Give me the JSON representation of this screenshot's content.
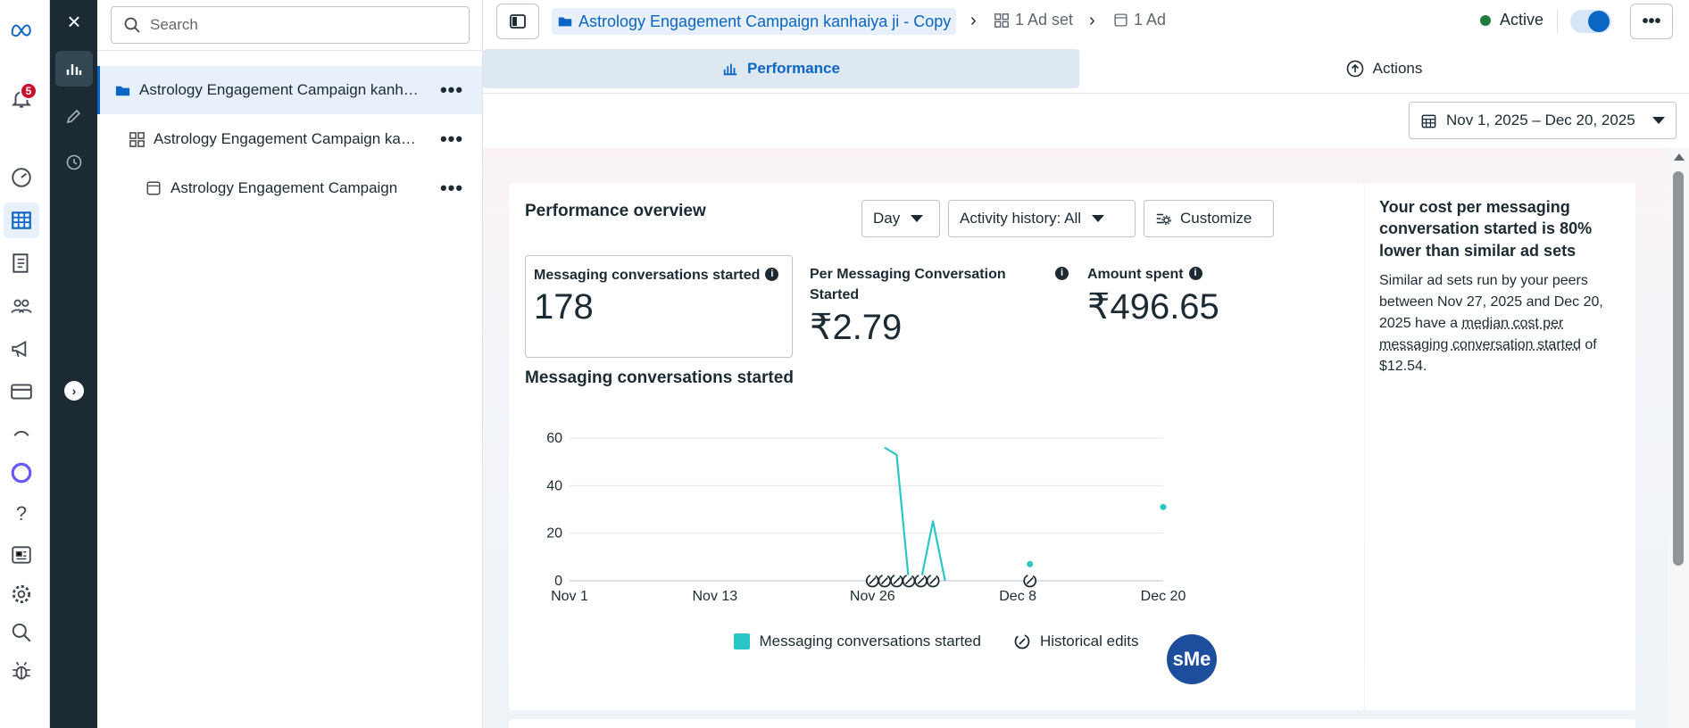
{
  "colors": {
    "accent": "#0a66c2",
    "series": "#2ac6c7",
    "active_status": "#1e7c43",
    "badge": "#c8102e",
    "toolbar_dark": "#1c2b33"
  },
  "rail": {
    "items": [
      {
        "icon": "meta-logo-icon"
      },
      {
        "icon": "bell-icon",
        "badge": "5"
      },
      {
        "icon": "dashboard-gauge-icon"
      },
      {
        "icon": "ads-manager-table-icon",
        "active": true
      },
      {
        "icon": "pages-icon"
      },
      {
        "icon": "audiences-icon"
      },
      {
        "icon": "megaphone-icon"
      },
      {
        "icon": "billing-card-icon"
      },
      {
        "icon": "loading-arc-icon"
      },
      {
        "icon": "meta-ai-ring-icon"
      },
      {
        "icon": "help-icon"
      },
      {
        "icon": "news-icon"
      },
      {
        "icon": "settings-gear-icon"
      },
      {
        "icon": "search-icon"
      },
      {
        "icon": "bug-report-icon"
      }
    ]
  },
  "tools": {
    "close": "×",
    "expand": "›"
  },
  "tree": {
    "search_placeholder": "Search",
    "rows": [
      {
        "label": "Astrology Engagement Campaign kanhaiya ji - Copy",
        "level": "campaign"
      },
      {
        "label": "Astrology Engagement Campaign kanhaiya ji - Copy",
        "level": "adset"
      },
      {
        "label": "Astrology Engagement Campaign",
        "level": "ad"
      }
    ],
    "more": "•••"
  },
  "topbar": {
    "campaign_crumb": "Astrology Engagement Campaign kanhaiya ji - Copy",
    "sep": "›",
    "adset_crumb": "1 Ad set",
    "ad_crumb": "1 Ad",
    "status": "Active",
    "toggle_on": true,
    "more": "•••"
  },
  "tabs": {
    "performance": "Performance",
    "actions": "Actions"
  },
  "date_range": "Nov 1, 2025 – Dec 20, 2025",
  "overview": {
    "title": "Performance overview",
    "granularity": "Day",
    "activity": "Activity history: All",
    "customize": "Customize",
    "metrics": [
      {
        "label": "Messaging conversations started",
        "value": "178"
      },
      {
        "label": "Per Messaging Conversation Started",
        "value": "₹2.79"
      },
      {
        "label": "Amount spent",
        "value": "₹496.65"
      }
    ],
    "info_glyph": "i"
  },
  "chart_data": {
    "type": "line",
    "title": "Messaging conversations started",
    "x_ticks": [
      "Nov 1",
      "Nov 13",
      "Nov 26",
      "Dec 8",
      "Dec 20"
    ],
    "y_ticks": [
      0,
      20,
      40,
      60
    ],
    "ylim": [
      0,
      60
    ],
    "grid": true,
    "series": [
      {
        "name": "Messaging conversations started",
        "segments": [
          [
            [
              "2025-11-27",
              56
            ],
            [
              "2025-11-28",
              53
            ],
            [
              "2025-11-29",
              0
            ],
            [
              "2025-11-30",
              0
            ],
            [
              "2025-12-01",
              25
            ],
            [
              "2025-12-02",
              0
            ]
          ],
          [
            [
              "2025-12-09",
              7
            ]
          ],
          [
            [
              "2025-12-20",
              31
            ]
          ]
        ]
      }
    ],
    "historical_edits": [
      "2025-11-26",
      "2025-11-27",
      "2025-11-28",
      "2025-11-29",
      "2025-11-30",
      "2025-12-01",
      "2025-12-09"
    ],
    "legend": [
      "Messaging conversations started",
      "Historical edits"
    ],
    "legend_position": "bottom"
  },
  "insight": {
    "title": "Your cost per messaging conversation started is 80% lower than similar ad sets",
    "body_1": "Similar ad sets run by your peers between Nov 27, 2025 and Dec 20, 2025 have a ",
    "body_link": "median cost per messaging conversation started",
    "body_2": " of $12.54."
  },
  "floating_avatar": "sMe"
}
